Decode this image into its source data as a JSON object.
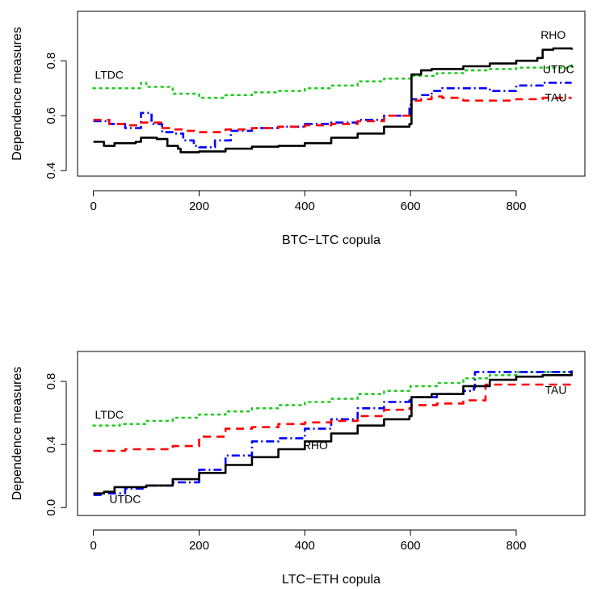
{
  "chart_data": [
    {
      "type": "line",
      "xlabel": "BTC−LTC copula",
      "ylabel": "Dependence measures",
      "xlim": [
        -30,
        930
      ],
      "ylim": [
        0.38,
        0.98
      ],
      "xticks": [
        0,
        200,
        400,
        600,
        800
      ],
      "yticks": [
        0.4,
        0.6,
        0.8
      ],
      "xtick_labels": [
        "0",
        "200",
        "400",
        "600",
        "800"
      ],
      "ytick_labels": [
        "0.4",
        "0.6",
        "0.8"
      ],
      "annotations": [
        {
          "text": "RHO",
          "x": 870,
          "y": 0.88
        },
        {
          "text": "UTDC",
          "x": 880,
          "y": 0.755
        },
        {
          "text": "TAU",
          "x": 875,
          "y": 0.652
        },
        {
          "text": "LTDC",
          "x": 30,
          "y": 0.735
        }
      ],
      "series": [
        {
          "name": "RHO",
          "color": "#000000",
          "dash": "",
          "width": 2.6,
          "x": [
            0,
            20,
            40,
            60,
            80,
            90,
            100,
            120,
            140,
            160,
            165,
            200,
            250,
            300,
            350,
            400,
            450,
            500,
            550,
            598,
            602,
            620,
            640,
            650,
            700,
            750,
            800,
            840,
            850,
            870,
            905
          ],
          "y": [
            0.505,
            0.49,
            0.5,
            0.5,
            0.505,
            0.52,
            0.52,
            0.515,
            0.49,
            0.48,
            0.467,
            0.47,
            0.48,
            0.487,
            0.49,
            0.5,
            0.52,
            0.535,
            0.56,
            0.57,
            0.75,
            0.765,
            0.77,
            0.77,
            0.78,
            0.79,
            0.8,
            0.81,
            0.84,
            0.845,
            0.84
          ]
        },
        {
          "name": "TAU",
          "color": "#ff0000",
          "dash": "10,7",
          "width": 2.6,
          "x": [
            0,
            30,
            60,
            90,
            110,
            130,
            150,
            170,
            200,
            250,
            300,
            350,
            400,
            450,
            500,
            550,
            598,
            602,
            620,
            640,
            660,
            700,
            750,
            800,
            850,
            905
          ],
          "y": [
            0.585,
            0.57,
            0.565,
            0.575,
            0.575,
            0.555,
            0.55,
            0.545,
            0.54,
            0.55,
            0.555,
            0.56,
            0.565,
            0.57,
            0.58,
            0.6,
            0.61,
            0.655,
            0.66,
            0.67,
            0.665,
            0.655,
            0.655,
            0.66,
            0.665,
            0.665
          ]
        },
        {
          "name": "UTDC",
          "color": "#0000ff",
          "dash": "10,4,2,4",
          "width": 2.6,
          "x": [
            0,
            30,
            60,
            90,
            110,
            130,
            150,
            170,
            190,
            200,
            230,
            260,
            300,
            350,
            400,
            450,
            500,
            550,
            598,
            602,
            620,
            640,
            660,
            700,
            750,
            800,
            850,
            905
          ],
          "y": [
            0.58,
            0.57,
            0.555,
            0.61,
            0.57,
            0.54,
            0.535,
            0.51,
            0.49,
            0.485,
            0.51,
            0.545,
            0.555,
            0.56,
            0.57,
            0.575,
            0.585,
            0.6,
            0.64,
            0.66,
            0.675,
            0.69,
            0.7,
            0.7,
            0.69,
            0.71,
            0.72,
            0.72
          ]
        },
        {
          "name": "LTDC",
          "color": "#22cc22",
          "dash": "2,6",
          "width": 2.6,
          "x": [
            0,
            50,
            90,
            100,
            150,
            200,
            250,
            300,
            350,
            400,
            450,
            500,
            550,
            600,
            650,
            700,
            750,
            800,
            850,
            905
          ],
          "y": [
            0.7,
            0.7,
            0.72,
            0.705,
            0.68,
            0.665,
            0.675,
            0.685,
            0.69,
            0.7,
            0.71,
            0.725,
            0.735,
            0.745,
            0.755,
            0.765,
            0.77,
            0.775,
            0.775,
            0.785
          ]
        }
      ]
    },
    {
      "type": "line",
      "xlabel": "LTC−ETH copula",
      "ylabel": "Dependence measures",
      "xlim": [
        -30,
        930
      ],
      "ylim": [
        -0.05,
        0.99
      ],
      "xticks": [
        0,
        200,
        400,
        600,
        800
      ],
      "yticks": [
        0.0,
        0.4,
        0.8
      ],
      "xtick_labels": [
        "0",
        "200",
        "400",
        "600",
        "800"
      ],
      "ytick_labels": [
        "0.0",
        "0.4",
        "0.8"
      ],
      "annotations": [
        {
          "text": "LTDC",
          "x": 30,
          "y": 0.565
        },
        {
          "text": "TAU",
          "x": 875,
          "y": 0.72
        },
        {
          "text": "RHO",
          "x": 420,
          "y": 0.37
        },
        {
          "text": "UTDC",
          "x": 60,
          "y": 0.03
        }
      ],
      "series": [
        {
          "name": "RHO",
          "color": "#000000",
          "dash": "",
          "width": 2.6,
          "x": [
            0,
            20,
            40,
            60,
            100,
            150,
            200,
            250,
            300,
            350,
            400,
            450,
            500,
            550,
            598,
            602,
            640,
            700,
            750,
            800,
            850,
            905
          ],
          "y": [
            0.09,
            0.1,
            0.13,
            0.13,
            0.14,
            0.18,
            0.22,
            0.27,
            0.32,
            0.37,
            0.42,
            0.47,
            0.52,
            0.56,
            0.58,
            0.7,
            0.72,
            0.77,
            0.81,
            0.83,
            0.84,
            0.86
          ]
        },
        {
          "name": "TAU",
          "color": "#ff0000",
          "dash": "10,7",
          "width": 2.6,
          "x": [
            0,
            30,
            60,
            100,
            150,
            200,
            250,
            300,
            350,
            400,
            450,
            500,
            550,
            598,
            602,
            650,
            700,
            740,
            742,
            800,
            905
          ],
          "y": [
            0.36,
            0.36,
            0.37,
            0.37,
            0.39,
            0.45,
            0.5,
            0.51,
            0.53,
            0.54,
            0.55,
            0.58,
            0.62,
            0.63,
            0.65,
            0.66,
            0.68,
            0.68,
            0.78,
            0.78,
            0.78
          ]
        },
        {
          "name": "UTDC",
          "color": "#0000ff",
          "dash": "10,4,2,4",
          "width": 2.6,
          "x": [
            0,
            20,
            40,
            60,
            100,
            150,
            200,
            250,
            300,
            350,
            400,
            450,
            500,
            550,
            598,
            602,
            650,
            700,
            720,
            722,
            800,
            905
          ],
          "y": [
            0.08,
            0.09,
            0.09,
            0.12,
            0.14,
            0.16,
            0.24,
            0.33,
            0.42,
            0.44,
            0.5,
            0.56,
            0.63,
            0.67,
            0.68,
            0.7,
            0.72,
            0.74,
            0.76,
            0.86,
            0.86,
            0.87
          ]
        },
        {
          "name": "LTDC",
          "color": "#22cc22",
          "dash": "2,6",
          "width": 2.6,
          "x": [
            0,
            50,
            100,
            150,
            200,
            250,
            300,
            350,
            400,
            450,
            500,
            550,
            600,
            650,
            700,
            750,
            800,
            850,
            905
          ],
          "y": [
            0.52,
            0.53,
            0.55,
            0.57,
            0.59,
            0.61,
            0.63,
            0.65,
            0.67,
            0.69,
            0.72,
            0.74,
            0.77,
            0.79,
            0.82,
            0.84,
            0.86,
            0.86,
            0.87
          ]
        }
      ]
    }
  ]
}
